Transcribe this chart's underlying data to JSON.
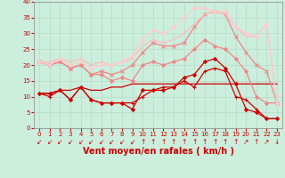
{
  "xlabel": "Vent moyen/en rafales ( km/h )",
  "bg_color": "#cceedd",
  "grid_color": "#aaddcc",
  "xlim": [
    -0.5,
    23.5
  ],
  "ylim": [
    0,
    40
  ],
  "xticks": [
    0,
    1,
    2,
    3,
    4,
    5,
    6,
    7,
    8,
    9,
    10,
    11,
    12,
    13,
    14,
    15,
    16,
    17,
    18,
    19,
    20,
    21,
    22,
    23
  ],
  "yticks": [
    0,
    5,
    10,
    15,
    20,
    25,
    30,
    35,
    40
  ],
  "series": [
    {
      "x": [
        0,
        1,
        2,
        3,
        4,
        5,
        6,
        7,
        8,
        9,
        10,
        11,
        12,
        13,
        14,
        15,
        16,
        17,
        18,
        19,
        20,
        21,
        22,
        23
      ],
      "y": [
        11,
        11,
        12,
        9,
        13,
        9,
        8,
        8,
        8,
        6,
        12,
        12,
        12,
        13,
        16,
        17,
        21,
        22,
        19,
        14,
        6,
        5,
        3,
        3
      ],
      "color": "#cc0000",
      "lw": 0.9,
      "marker": "D",
      "ms": 2.0,
      "alpha": 1.0
    },
    {
      "x": [
        0,
        1,
        2,
        3,
        4,
        5,
        6,
        7,
        8,
        9,
        10,
        11,
        12,
        13,
        14,
        15,
        16,
        17,
        18,
        19,
        20,
        21,
        22,
        23
      ],
      "y": [
        11,
        10,
        12,
        9,
        13,
        9,
        8,
        8,
        8,
        8,
        10,
        12,
        13,
        13,
        15,
        13,
        18,
        19,
        18,
        10,
        9,
        6,
        3,
        3
      ],
      "color": "#cc0000",
      "lw": 0.9,
      "marker": "+",
      "ms": 3.5,
      "alpha": 1.0
    },
    {
      "x": [
        0,
        1,
        2,
        3,
        4,
        5,
        6,
        7,
        8,
        9,
        10,
        11,
        12,
        13,
        14,
        15,
        16,
        17,
        18,
        19,
        20,
        21,
        22,
        23
      ],
      "y": [
        11,
        11,
        12,
        12,
        13,
        12,
        12,
        13,
        13,
        14,
        14,
        14,
        14,
        14,
        14,
        14,
        14,
        14,
        14,
        14,
        14,
        14,
        14,
        14
      ],
      "color": "#cc0000",
      "lw": 0.9,
      "marker": null,
      "ms": 0,
      "alpha": 1.0
    },
    {
      "x": [
        0,
        1,
        2,
        3,
        4,
        5,
        6,
        7,
        8,
        9,
        10,
        11,
        12,
        13,
        14,
        15,
        16,
        17,
        18,
        19,
        20,
        21,
        22,
        23
      ],
      "y": [
        21,
        20,
        21,
        19,
        20,
        17,
        17,
        15,
        16,
        15,
        20,
        21,
        20,
        21,
        22,
        25,
        28,
        26,
        25,
        22,
        18,
        10,
        8,
        8
      ],
      "color": "#ee8888",
      "lw": 0.9,
      "marker": "D",
      "ms": 2.0,
      "alpha": 1.0
    },
    {
      "x": [
        0,
        1,
        2,
        3,
        4,
        5,
        6,
        7,
        8,
        9,
        10,
        11,
        12,
        13,
        14,
        15,
        16,
        17,
        18,
        19,
        20,
        21,
        22,
        23
      ],
      "y": [
        21,
        20,
        21,
        19,
        20,
        17,
        18,
        17,
        18,
        20,
        24,
        27,
        26,
        26,
        27,
        32,
        36,
        37,
        36,
        29,
        24,
        20,
        18,
        8
      ],
      "color": "#ee8888",
      "lw": 0.9,
      "marker": "x",
      "ms": 3.0,
      "alpha": 1.0
    },
    {
      "x": [
        0,
        1,
        2,
        3,
        4,
        5,
        6,
        7,
        8,
        9,
        10,
        11,
        12,
        13,
        14,
        15,
        16,
        17,
        18,
        19,
        20,
        21,
        22,
        23
      ],
      "y": [
        21,
        21,
        22,
        21,
        22,
        20,
        21,
        20,
        21,
        22,
        26,
        28,
        27,
        28,
        30,
        33,
        36,
        37,
        36,
        32,
        29,
        29,
        33,
        8
      ],
      "color": "#ffbbbb",
      "lw": 0.9,
      "marker": null,
      "ms": 0,
      "alpha": 1.0
    },
    {
      "x": [
        0,
        1,
        2,
        3,
        4,
        5,
        6,
        7,
        8,
        9,
        10,
        11,
        12,
        13,
        14,
        15,
        16,
        17,
        18,
        19,
        20,
        21,
        22,
        23
      ],
      "y": [
        21,
        20,
        22,
        20,
        21,
        19,
        20,
        20,
        21,
        23,
        28,
        31,
        30,
        32,
        35,
        38,
        38,
        37,
        37,
        32,
        30,
        29,
        33,
        8
      ],
      "color": "#ffcccc",
      "lw": 0.9,
      "marker": "D",
      "ms": 2.0,
      "alpha": 1.0
    }
  ],
  "arrow_symbols": [
    "↙",
    "↙",
    "↙",
    "↙",
    "↙",
    "↙",
    "↙",
    "↙",
    "↙",
    "↙",
    "↑",
    "↑",
    "↑",
    "↑",
    "↑",
    "↑",
    "↑",
    "↑",
    "↑",
    "↑",
    "↗",
    "↑",
    "↗",
    "↓"
  ],
  "arrow_fontsize": 5.5,
  "tick_fontsize": 5,
  "label_fontsize": 7
}
